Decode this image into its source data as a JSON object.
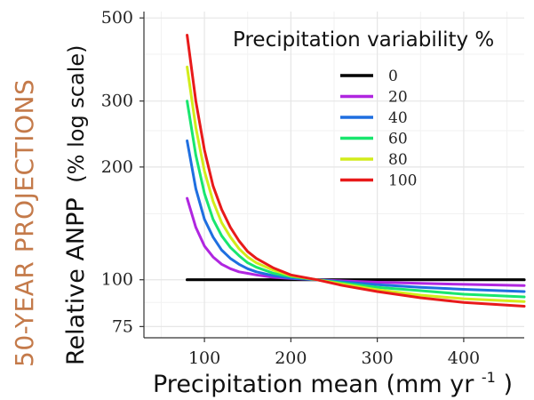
{
  "side_title": "50-YEAR PROJECTIONS",
  "chart_data": {
    "type": "line",
    "title": "",
    "xlabel": "Precipitation mean (mm yr",
    "xlabel_sup": "-1",
    "xlabel_close": ")",
    "ylabel_main": "Relative ANPP",
    "ylabel_paren": "(% log scale)",
    "y_scale": "log",
    "xlim": [
      30,
      470
    ],
    "ylim": [
      70,
      520
    ],
    "x_ticks": [
      100,
      200,
      300,
      400
    ],
    "y_ticks": [
      75,
      100,
      200,
      300,
      500
    ],
    "grid": true,
    "legend": {
      "title": "Precipitation variability %",
      "placement": "top-right"
    },
    "x": [
      80,
      90,
      100,
      110,
      120,
      130,
      140,
      150,
      160,
      180,
      200,
      230,
      260,
      300,
      350,
      400,
      470
    ],
    "series": [
      {
        "name": "0",
        "color": "#000000",
        "values": [
          100,
          100,
          100,
          100,
          100,
          100,
          100,
          100,
          100,
          100,
          100,
          100,
          100,
          100,
          100,
          100,
          100
        ]
      },
      {
        "name": "20",
        "color": "#b026e0",
        "values": [
          165,
          138,
          123,
          115,
          110,
          107,
          105,
          104,
          103,
          101.5,
          100.8,
          100,
          99.3,
          98.5,
          97.8,
          97.2,
          96.5
        ]
      },
      {
        "name": "40",
        "color": "#1f6fe0",
        "values": [
          235,
          175,
          145,
          130,
          120,
          114,
          110,
          107,
          105,
          102.5,
          101,
          100,
          98.7,
          97,
          95.5,
          94.3,
          93
        ]
      },
      {
        "name": "60",
        "color": "#19e66e",
        "values": [
          300,
          215,
          170,
          145,
          131,
          122,
          116,
          111,
          108,
          104,
          102,
          100,
          98,
          95.5,
          93.5,
          91.5,
          90
        ]
      },
      {
        "name": "80",
        "color": "#d2ec1a",
        "values": [
          370,
          255,
          195,
          162,
          142,
          130,
          121,
          115,
          111,
          106,
          102.5,
          100,
          97.3,
          94,
          91,
          89,
          87.5
        ]
      },
      {
        "name": "100",
        "color": "#e81a1a",
        "values": [
          450,
          300,
          222,
          178,
          154,
          138,
          127,
          119,
          114,
          107.5,
          103,
          100,
          96.5,
          93,
          89.5,
          87,
          85
        ]
      }
    ]
  }
}
